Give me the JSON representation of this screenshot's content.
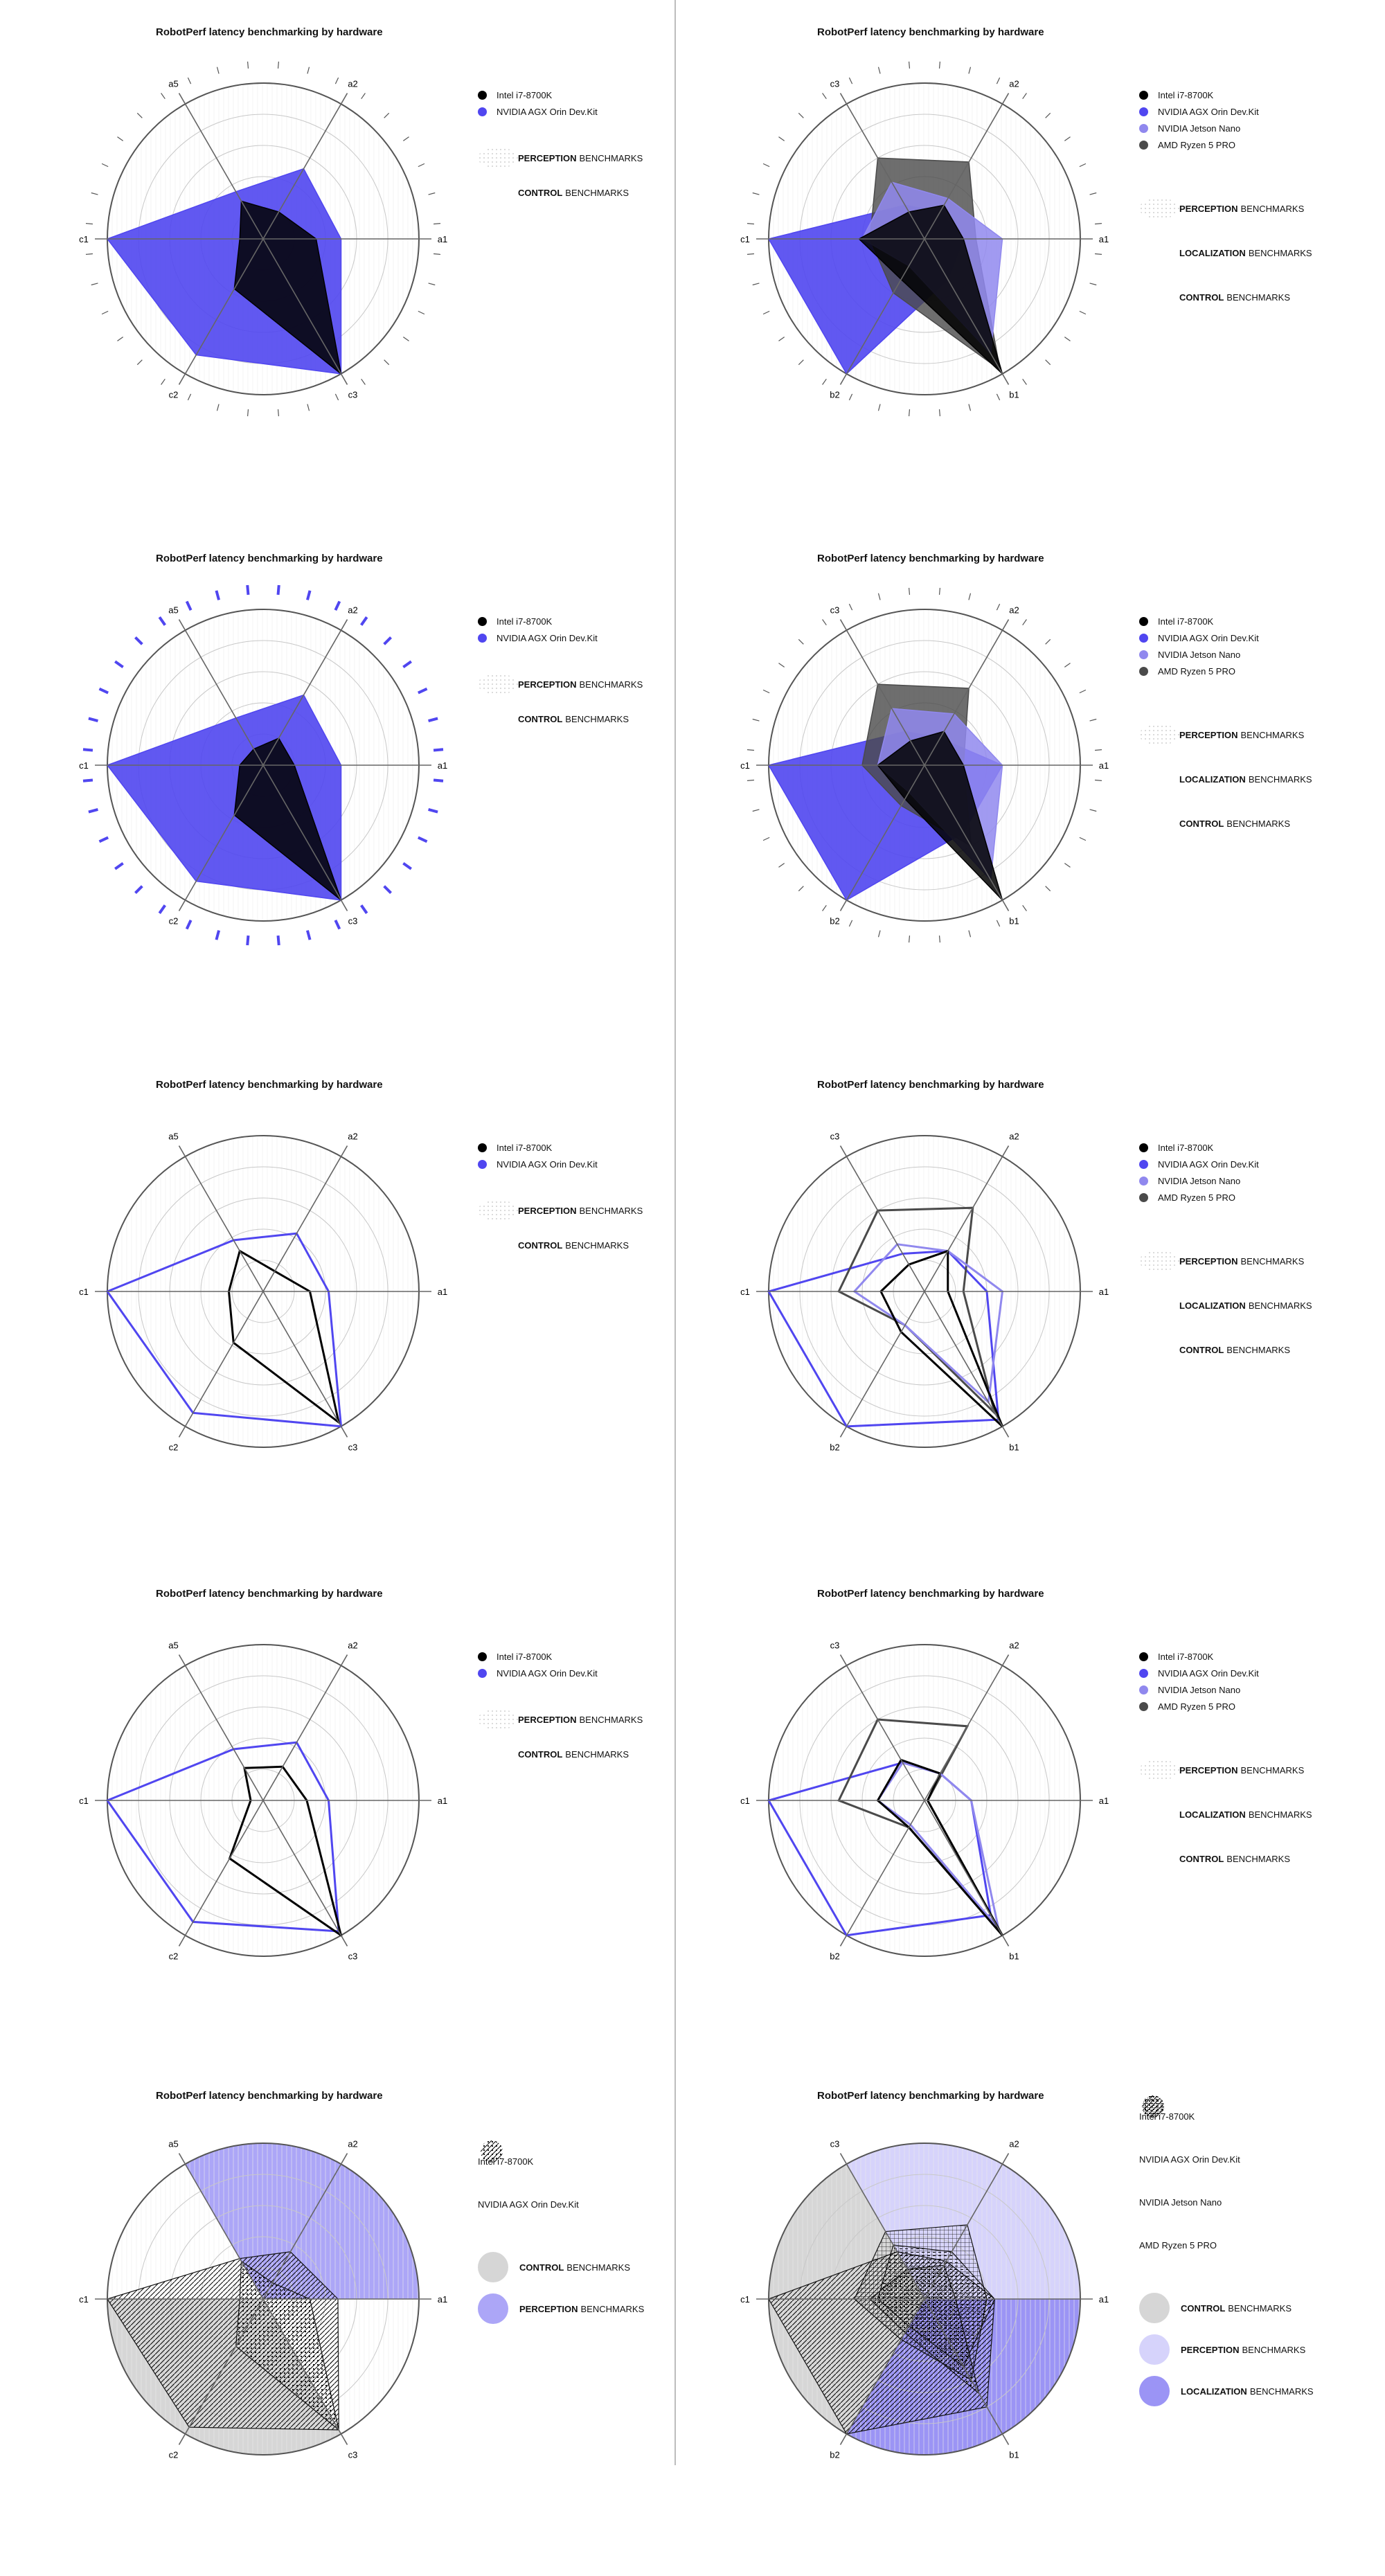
{
  "title": "RobotPerf latency benchmarking by hardware",
  "colors": {
    "intel": "#000000",
    "orin": "#5046f0",
    "nano": "#9088ee",
    "amd": "#4a4a4a",
    "grid": "#c8c8c8",
    "perception_bg": "#aca6f7",
    "control_bg": "#d6d6d6",
    "localization_bg": "#9b94f5",
    "perception_light_bg": "#d6d3fb"
  },
  "hardware": {
    "intel": "Intel i7-8700K",
    "orin": "NVIDIA AGX Orin Dev.Kit",
    "nano": "NVIDIA Jetson Nano",
    "amd": "AMD Ryzen 5 PRO"
  },
  "categories": {
    "perception": "PERCEPTION",
    "localization": "LOCALIZATION",
    "control": "CONTROL",
    "suffix": "BENCHMARKS"
  },
  "chart_data": [
    {
      "type": "radar",
      "variant": "filled",
      "ticks": "gray",
      "axes": [
        "a1",
        "a2",
        "a5",
        "c1",
        "c2",
        "c3"
      ],
      "title": "RobotPerf latency benchmarking by hardware",
      "series": [
        {
          "name": "NVIDIA AGX Orin Dev.Kit",
          "values": [
            0.5,
            0.52,
            0.35,
            1.0,
            0.86,
            1.0
          ]
        },
        {
          "name": "Intel i7-8700K",
          "values": [
            0.34,
            0.2,
            0.28,
            0.15,
            0.37,
            1.0
          ]
        }
      ]
    },
    {
      "type": "radar",
      "variant": "filled",
      "ticks": "gray",
      "axes": [
        "a1",
        "a2",
        "c3",
        "c1",
        "b2",
        "b1"
      ],
      "title": "RobotPerf latency benchmarking by hardware",
      "series": [
        {
          "name": "NVIDIA AGX Orin Dev.Kit",
          "values": [
            0.25,
            0.2,
            0.25,
            1.0,
            1.0,
            0.3
          ]
        },
        {
          "name": "AMD Ryzen 5 PRO",
          "values": [
            0.33,
            0.57,
            0.6,
            0.35,
            0.4,
            0.97
          ]
        },
        {
          "name": "NVIDIA Jetson Nano",
          "values": [
            0.5,
            0.3,
            0.42,
            0.4,
            0.2,
            0.85
          ]
        },
        {
          "name": "Intel i7-8700K",
          "values": [
            0.25,
            0.25,
            0.2,
            0.42,
            0.3,
            1.0
          ]
        }
      ]
    },
    {
      "type": "radar",
      "variant": "filled",
      "ticks": "blue",
      "axes": [
        "a1",
        "a2",
        "a5",
        "c1",
        "c2",
        "c3"
      ],
      "title": "RobotPerf latency benchmarking by hardware",
      "series": [
        {
          "name": "NVIDIA AGX Orin Dev.Kit",
          "values": [
            0.5,
            0.52,
            0.35,
            1.0,
            0.86,
            1.0
          ]
        },
        {
          "name": "Intel i7-8700K",
          "values": [
            0.2,
            0.2,
            0.12,
            0.15,
            0.37,
            1.0
          ]
        }
      ]
    },
    {
      "type": "radar",
      "variant": "filled",
      "ticks": "gray",
      "axes": [
        "a1",
        "a2",
        "c3",
        "c1",
        "b2",
        "b1"
      ],
      "title": "RobotPerf latency benchmarking by hardware",
      "series": [
        {
          "name": "NVIDIA AGX Orin Dev.Kit",
          "values": [
            0.5,
            0.2,
            0.25,
            1.0,
            1.0,
            0.5
          ]
        },
        {
          "name": "AMD Ryzen 5 PRO",
          "values": [
            0.25,
            0.57,
            0.6,
            0.4,
            0.3,
            0.6
          ]
        },
        {
          "name": "NVIDIA Jetson Nano",
          "values": [
            0.5,
            0.38,
            0.42,
            0.3,
            0.2,
            0.85
          ]
        },
        {
          "name": "Intel i7-8700K",
          "values": [
            0.25,
            0.25,
            0.18,
            0.3,
            0.25,
            1.0
          ]
        }
      ]
    },
    {
      "type": "radar",
      "variant": "outline",
      "ticks": "none",
      "axes": [
        "a1",
        "a2",
        "a5",
        "c1",
        "c2",
        "c3"
      ],
      "title": "RobotPerf latency benchmarking by hardware",
      "series": [
        {
          "name": "NVIDIA AGX Orin Dev.Kit",
          "values": [
            0.42,
            0.43,
            0.38,
            1.0,
            0.9,
            1.0
          ]
        },
        {
          "name": "Intel i7-8700K",
          "values": [
            0.3,
            0.15,
            0.3,
            0.22,
            0.38,
            0.97
          ]
        }
      ]
    },
    {
      "type": "radar",
      "variant": "outline",
      "ticks": "none",
      "axes": [
        "a1",
        "a2",
        "c3",
        "c1",
        "b2",
        "b1"
      ],
      "title": "RobotPerf latency benchmarking by hardware",
      "series": [
        {
          "name": "NVIDIA AGX Orin Dev.Kit",
          "values": [
            0.4,
            0.3,
            0.28,
            1.0,
            1.0,
            0.95
          ]
        },
        {
          "name": "AMD Ryzen 5 PRO",
          "values": [
            0.25,
            0.62,
            0.6,
            0.55,
            0.25,
            0.9
          ]
        },
        {
          "name": "NVIDIA Jetson Nano",
          "values": [
            0.5,
            0.3,
            0.35,
            0.45,
            0.25,
            0.82
          ]
        },
        {
          "name": "Intel i7-8700K",
          "values": [
            0.15,
            0.3,
            0.2,
            0.28,
            0.3,
            1.0
          ]
        }
      ]
    },
    {
      "type": "radar",
      "variant": "outline",
      "ticks": "none",
      "axes": [
        "a1",
        "a2",
        "a5",
        "c1",
        "c2",
        "c3"
      ],
      "title": "RobotPerf latency benchmarking by hardware",
      "series": [
        {
          "name": "NVIDIA AGX Orin Dev.Kit",
          "values": [
            0.42,
            0.43,
            0.38,
            1.0,
            0.9,
            0.97
          ]
        },
        {
          "name": "Intel i7-8700K",
          "values": [
            0.28,
            0.25,
            0.24,
            0.08,
            0.43,
            1.0
          ]
        }
      ]
    },
    {
      "type": "radar",
      "variant": "outline",
      "ticks": "none",
      "axes": [
        "a1",
        "a2",
        "c3",
        "c1",
        "b2",
        "b1"
      ],
      "title": "RobotPerf latency benchmarking by hardware",
      "series": [
        {
          "name": "NVIDIA AGX Orin Dev.Kit",
          "values": [
            0.3,
            0.2,
            0.28,
            1.0,
            1.0,
            0.85
          ]
        },
        {
          "name": "AMD Ryzen 5 PRO",
          "values": [
            0.02,
            0.55,
            0.6,
            0.55,
            0.2,
            0.95
          ]
        },
        {
          "name": "NVIDIA Jetson Nano",
          "values": [
            0.3,
            0.2,
            0.28,
            0.3,
            0.18,
            0.95
          ]
        },
        {
          "name": "Intel i7-8700K",
          "values": [
            0.02,
            0.2,
            0.3,
            0.3,
            0.2,
            1.0
          ]
        }
      ]
    },
    {
      "type": "radar",
      "variant": "pattern",
      "ticks": "none",
      "axes": [
        "a1",
        "a2",
        "a5",
        "c1",
        "c2",
        "c3"
      ],
      "sectors": [
        {
          "category": "perception",
          "from_axis": "a1",
          "to_axis": "a5"
        },
        {
          "category": "control",
          "from_axis": "c1",
          "to_axis": "c3"
        }
      ],
      "title": "RobotPerf latency benchmarking by hardware",
      "series": [
        {
          "name": "NVIDIA AGX Orin Dev.Kit",
          "values": [
            0.48,
            0.35,
            0.3,
            1.0,
            0.95,
            0.97
          ]
        },
        {
          "name": "Intel i7-8700K",
          "values": [
            0.3,
            0.12,
            0.28,
            0.15,
            0.35,
            0.97
          ]
        }
      ]
    },
    {
      "type": "radar",
      "variant": "pattern",
      "ticks": "none",
      "axes": [
        "a1",
        "a2",
        "c3",
        "c1",
        "b2",
        "b1"
      ],
      "sectors": [
        {
          "category": "perception_light",
          "from_axis": "a1",
          "to_axis": "c3"
        },
        {
          "category": "control",
          "from_axis": "c3",
          "to_axis": "b2"
        },
        {
          "category": "localization",
          "from_axis": "b2",
          "to_axis": "a1"
        }
      ],
      "title": "RobotPerf latency benchmarking by hardware",
      "series": [
        {
          "name": "NVIDIA AGX Orin Dev.Kit",
          "values": [
            0.45,
            0.28,
            0.35,
            1.0,
            1.0,
            0.8
          ]
        },
        {
          "name": "AMD Ryzen 5 PRO",
          "values": [
            0.4,
            0.55,
            0.5,
            0.45,
            0.3,
            0.6
          ]
        },
        {
          "name": "NVIDIA Jetson Nano",
          "values": [
            0.45,
            0.35,
            0.4,
            0.3,
            0.2,
            0.5
          ]
        },
        {
          "name": "Intel i7-8700K",
          "values": [
            0.2,
            0.25,
            0.22,
            0.35,
            0.25,
            0.7
          ]
        }
      ]
    }
  ]
}
